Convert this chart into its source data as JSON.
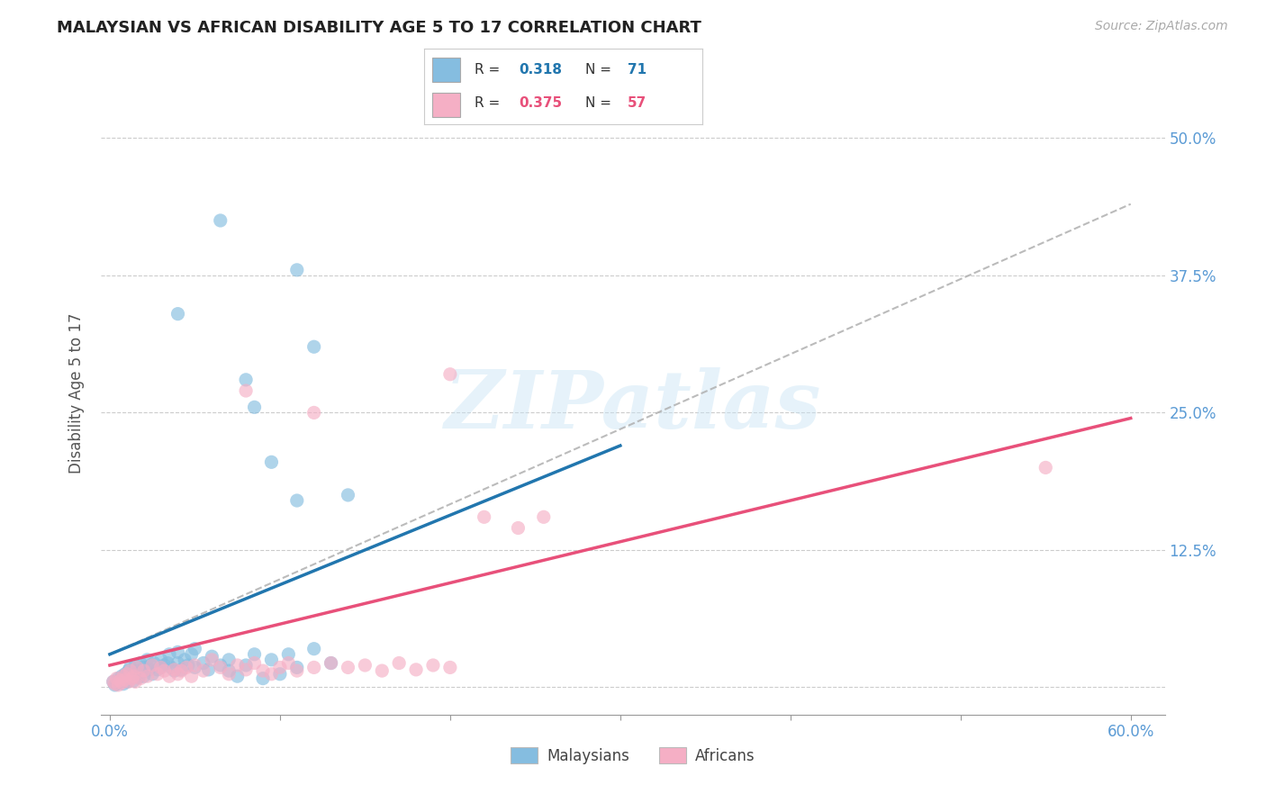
{
  "title": "MALAYSIAN VS AFRICAN DISABILITY AGE 5 TO 17 CORRELATION CHART",
  "source": "Source: ZipAtlas.com",
  "ylabel": "Disability Age 5 to 17",
  "xlim": [
    -0.005,
    0.62
  ],
  "ylim": [
    -0.025,
    0.56
  ],
  "ytick_positions": [
    0.0,
    0.125,
    0.25,
    0.375,
    0.5
  ],
  "ytick_labels": [
    "",
    "12.5%",
    "25.0%",
    "37.5%",
    "50.0%"
  ],
  "malaysian_color": "#85bde0",
  "african_color": "#f5afc5",
  "malaysian_line_color": "#2176ae",
  "african_line_color": "#e8507a",
  "dashed_line_color": "#b0b0b0",
  "r_malaysian": 0.318,
  "n_malaysian": 71,
  "r_african": 0.375,
  "n_african": 57,
  "legend_label_1": "Malaysians",
  "legend_label_2": "Africans",
  "watermark": "ZIPatlas",
  "background_color": "#ffffff",
  "grid_color": "#cccccc",
  "ytick_color": "#5b9bd5",
  "title_color": "#222222",
  "source_color": "#aaaaaa",
  "malaysian_points": [
    [
      0.002,
      0.005
    ],
    [
      0.003,
      0.002
    ],
    [
      0.004,
      0.003
    ],
    [
      0.005,
      0.008
    ],
    [
      0.005,
      0.004
    ],
    [
      0.006,
      0.006
    ],
    [
      0.007,
      0.01
    ],
    [
      0.008,
      0.003
    ],
    [
      0.008,
      0.007
    ],
    [
      0.009,
      0.012
    ],
    [
      0.01,
      0.005
    ],
    [
      0.01,
      0.009
    ],
    [
      0.011,
      0.015
    ],
    [
      0.012,
      0.008
    ],
    [
      0.012,
      0.018
    ],
    [
      0.013,
      0.01
    ],
    [
      0.014,
      0.006
    ],
    [
      0.015,
      0.02
    ],
    [
      0.015,
      0.012
    ],
    [
      0.016,
      0.015
    ],
    [
      0.017,
      0.009
    ],
    [
      0.018,
      0.022
    ],
    [
      0.019,
      0.014
    ],
    [
      0.02,
      0.018
    ],
    [
      0.02,
      0.01
    ],
    [
      0.022,
      0.025
    ],
    [
      0.023,
      0.016
    ],
    [
      0.024,
      0.02
    ],
    [
      0.025,
      0.012
    ],
    [
      0.026,
      0.022
    ],
    [
      0.028,
      0.016
    ],
    [
      0.03,
      0.018
    ],
    [
      0.03,
      0.025
    ],
    [
      0.032,
      0.02
    ],
    [
      0.034,
      0.022
    ],
    [
      0.035,
      0.03
    ],
    [
      0.036,
      0.018
    ],
    [
      0.038,
      0.015
    ],
    [
      0.04,
      0.022
    ],
    [
      0.04,
      0.032
    ],
    [
      0.042,
      0.016
    ],
    [
      0.044,
      0.025
    ],
    [
      0.046,
      0.02
    ],
    [
      0.048,
      0.03
    ],
    [
      0.05,
      0.018
    ],
    [
      0.05,
      0.035
    ],
    [
      0.055,
      0.022
    ],
    [
      0.058,
      0.016
    ],
    [
      0.06,
      0.028
    ],
    [
      0.065,
      0.02
    ],
    [
      0.07,
      0.015
    ],
    [
      0.07,
      0.025
    ],
    [
      0.075,
      0.01
    ],
    [
      0.08,
      0.02
    ],
    [
      0.085,
      0.03
    ],
    [
      0.09,
      0.008
    ],
    [
      0.095,
      0.025
    ],
    [
      0.1,
      0.012
    ],
    [
      0.105,
      0.03
    ],
    [
      0.11,
      0.018
    ],
    [
      0.12,
      0.035
    ],
    [
      0.13,
      0.022
    ],
    [
      0.04,
      0.34
    ],
    [
      0.08,
      0.28
    ],
    [
      0.11,
      0.38
    ],
    [
      0.12,
      0.31
    ],
    [
      0.065,
      0.425
    ],
    [
      0.085,
      0.255
    ],
    [
      0.095,
      0.205
    ],
    [
      0.11,
      0.17
    ],
    [
      0.14,
      0.175
    ]
  ],
  "african_points": [
    [
      0.002,
      0.005
    ],
    [
      0.003,
      0.003
    ],
    [
      0.004,
      0.008
    ],
    [
      0.005,
      0.002
    ],
    [
      0.006,
      0.006
    ],
    [
      0.007,
      0.004
    ],
    [
      0.008,
      0.01
    ],
    [
      0.009,
      0.007
    ],
    [
      0.01,
      0.012
    ],
    [
      0.011,
      0.005
    ],
    [
      0.012,
      0.015
    ],
    [
      0.013,
      0.008
    ],
    [
      0.014,
      0.01
    ],
    [
      0.015,
      0.005
    ],
    [
      0.016,
      0.018
    ],
    [
      0.018,
      0.008
    ],
    [
      0.02,
      0.015
    ],
    [
      0.022,
      0.01
    ],
    [
      0.025,
      0.02
    ],
    [
      0.028,
      0.012
    ],
    [
      0.03,
      0.018
    ],
    [
      0.032,
      0.015
    ],
    [
      0.035,
      0.01
    ],
    [
      0.038,
      0.016
    ],
    [
      0.04,
      0.012
    ],
    [
      0.042,
      0.015
    ],
    [
      0.045,
      0.018
    ],
    [
      0.048,
      0.01
    ],
    [
      0.05,
      0.02
    ],
    [
      0.055,
      0.015
    ],
    [
      0.06,
      0.025
    ],
    [
      0.065,
      0.018
    ],
    [
      0.07,
      0.012
    ],
    [
      0.075,
      0.02
    ],
    [
      0.08,
      0.016
    ],
    [
      0.085,
      0.022
    ],
    [
      0.09,
      0.015
    ],
    [
      0.095,
      0.012
    ],
    [
      0.1,
      0.018
    ],
    [
      0.105,
      0.022
    ],
    [
      0.11,
      0.015
    ],
    [
      0.12,
      0.018
    ],
    [
      0.13,
      0.022
    ],
    [
      0.14,
      0.018
    ],
    [
      0.15,
      0.02
    ],
    [
      0.16,
      0.015
    ],
    [
      0.17,
      0.022
    ],
    [
      0.18,
      0.016
    ],
    [
      0.19,
      0.02
    ],
    [
      0.2,
      0.018
    ],
    [
      0.22,
      0.155
    ],
    [
      0.24,
      0.145
    ],
    [
      0.255,
      0.155
    ],
    [
      0.08,
      0.27
    ],
    [
      0.12,
      0.25
    ],
    [
      0.2,
      0.285
    ],
    [
      0.55,
      0.2
    ]
  ]
}
